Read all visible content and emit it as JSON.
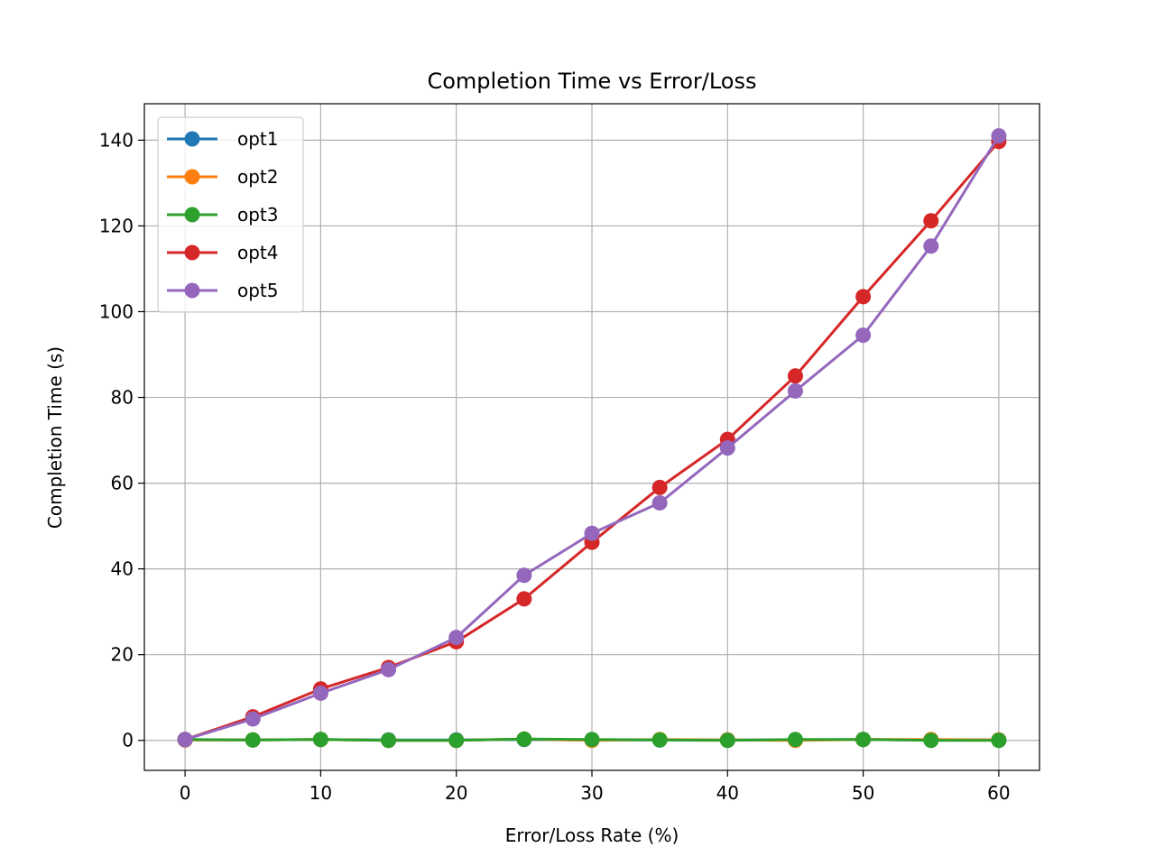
{
  "chart_data": {
    "type": "line",
    "title": "Completion Time vs Error/Loss",
    "xlabel": "Error/Loss Rate (%)",
    "ylabel": "Completion Time (s)",
    "xlim": [
      -3,
      63
    ],
    "ylim": [
      -7,
      148.5
    ],
    "xticks": [
      0,
      10,
      20,
      30,
      40,
      50,
      60
    ],
    "yticks": [
      0,
      20,
      40,
      60,
      80,
      100,
      120,
      140
    ],
    "grid": true,
    "legend_position": "top-left",
    "x": [
      0,
      5,
      10,
      15,
      20,
      25,
      30,
      35,
      40,
      45,
      50,
      55,
      60
    ],
    "series": [
      {
        "name": "opt1",
        "color": "#1f77b4",
        "values": [
          0.1,
          0.1,
          0.2,
          0.1,
          0.1,
          0.2,
          0.1,
          0.1,
          0.1,
          0.1,
          0.2,
          0.1,
          0.1
        ]
      },
      {
        "name": "opt2",
        "color": "#ff7f0e",
        "values": [
          0.1,
          0.1,
          0.2,
          0.0,
          0.0,
          0.3,
          0.0,
          0.2,
          0.1,
          0.0,
          0.2,
          0.2,
          0.1
        ]
      },
      {
        "name": "opt3",
        "color": "#2ca02c",
        "values": [
          0.2,
          0.1,
          0.2,
          0.0,
          0.0,
          0.3,
          0.2,
          0.1,
          0.0,
          0.2,
          0.2,
          0.0,
          0.0
        ]
      },
      {
        "name": "opt4",
        "color": "#d62728",
        "values": [
          0.2,
          5.5,
          12.0,
          17.0,
          23.0,
          33.0,
          46.2,
          59.0,
          70.2,
          85.0,
          103.5,
          121.2,
          139.7
        ]
      },
      {
        "name": "opt5",
        "color": "#9467bd",
        "values": [
          0.2,
          5.0,
          11.0,
          16.5,
          24.0,
          38.5,
          48.3,
          55.4,
          68.2,
          81.5,
          94.5,
          115.3,
          141.0
        ]
      }
    ]
  }
}
